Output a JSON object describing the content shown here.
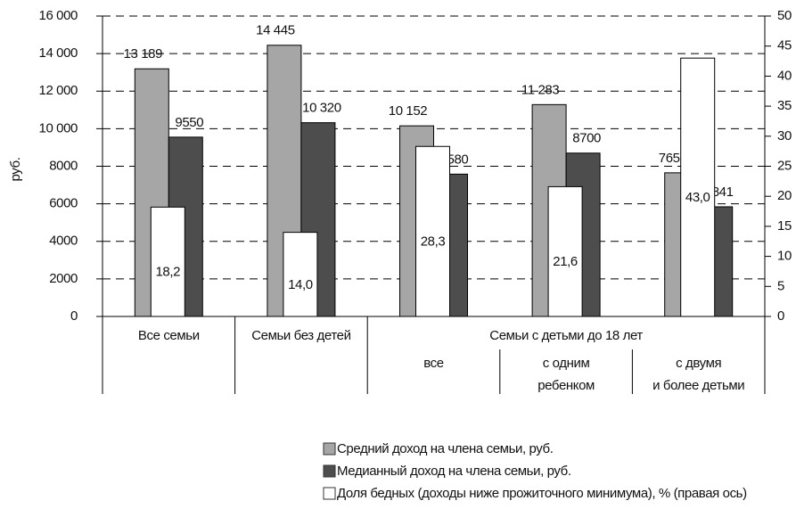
{
  "chart_data": {
    "type": "bar",
    "y_label": "руб.",
    "categories": [
      [
        "Все семьи"
      ],
      [
        "Семьи без детей"
      ],
      [
        "все"
      ],
      [
        "с одним",
        "ребенком"
      ],
      [
        "с двумя",
        "и более детьми"
      ]
    ],
    "category_groups": [
      {
        "label": "Семьи с детьми до 18 лет",
        "categories": [
          2,
          3,
          4
        ]
      }
    ],
    "series": [
      {
        "name": "Средний доход на члена семьи, руб.",
        "color": "#a6a6a6",
        "values": [
          13189,
          14445,
          10152,
          11283,
          7651
        ],
        "value_labels": [
          "13 189",
          "14 445",
          "10 152",
          "11 283",
          "7651"
        ]
      },
      {
        "name": "Медианный доход на члена семьи, руб.",
        "color": "#4d4d4d",
        "values": [
          9550,
          10320,
          7580,
          8700,
          5841
        ],
        "value_labels": [
          "9550",
          "10 320",
          "7580",
          "8700",
          "5841"
        ]
      },
      {
        "name": "Доля бедных (доходы ниже прожиточного минимума), % (правая ось)",
        "color": "#ffffff",
        "axis": "y2",
        "values": [
          18.2,
          14.0,
          28.3,
          21.6,
          43.0
        ],
        "value_labels": [
          "18,2",
          "14,0",
          "28,3",
          "21,6",
          "43,0"
        ]
      }
    ],
    "ylim": [
      0,
      16000
    ],
    "yticks": [
      0,
      2000,
      4000,
      6000,
      8000,
      {
        "value": 10000,
        "label": "10 000"
      },
      {
        "value": 12000,
        "label": "12 000"
      },
      {
        "value": 14000,
        "label": "14 000"
      },
      {
        "value": 16000,
        "label": "16 000"
      }
    ],
    "y2lim": [
      0,
      50
    ],
    "y2ticks": [
      0,
      5,
      10,
      15,
      20,
      25,
      30,
      35,
      40,
      45,
      50
    ],
    "grid": true
  }
}
